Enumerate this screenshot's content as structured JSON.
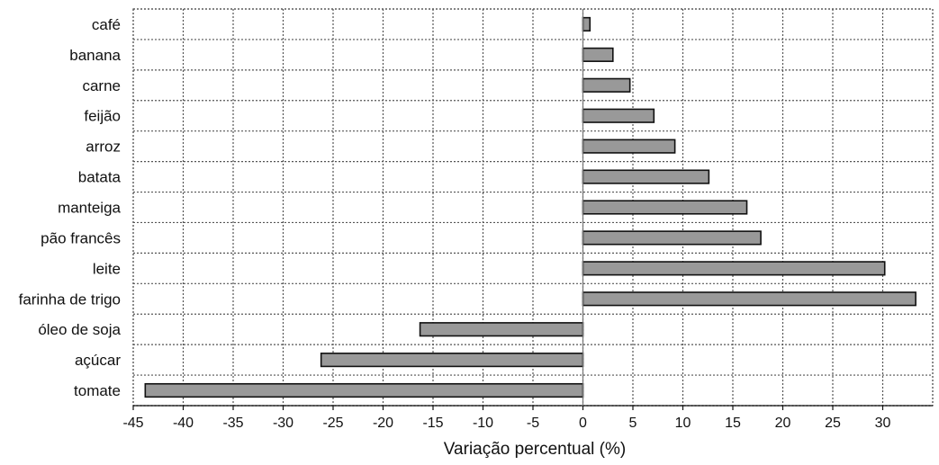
{
  "chart_data": {
    "type": "bar",
    "orientation": "horizontal",
    "categories": [
      "café",
      "banana",
      "carne",
      "feijão",
      "arroz",
      "batata",
      "manteiga",
      "pão francês",
      "leite",
      "farinha de trigo",
      "óleo de soja",
      "açúcar",
      "tomate"
    ],
    "values": [
      0.7,
      3.0,
      4.7,
      7.1,
      9.2,
      12.6,
      16.4,
      17.8,
      30.2,
      33.3,
      -16.3,
      -26.2,
      -43.8
    ],
    "xlabel": "Variação percentual (%)",
    "xlim": [
      -45,
      35
    ],
    "xticks": [
      -45,
      -40,
      -35,
      -30,
      -25,
      -20,
      -15,
      -10,
      -5,
      0,
      5,
      10,
      15,
      20,
      25,
      30
    ],
    "xtick_labels": [
      "-45",
      "-40",
      "-35",
      "-30",
      "-25",
      "-20",
      "-15",
      "-10",
      "-5",
      "0",
      "5",
      "10",
      "15",
      "20",
      "25",
      "30"
    ],
    "grid": true,
    "grid_style": "dotted",
    "bar_color": "#999999",
    "bar_edge_color": "#111111"
  }
}
